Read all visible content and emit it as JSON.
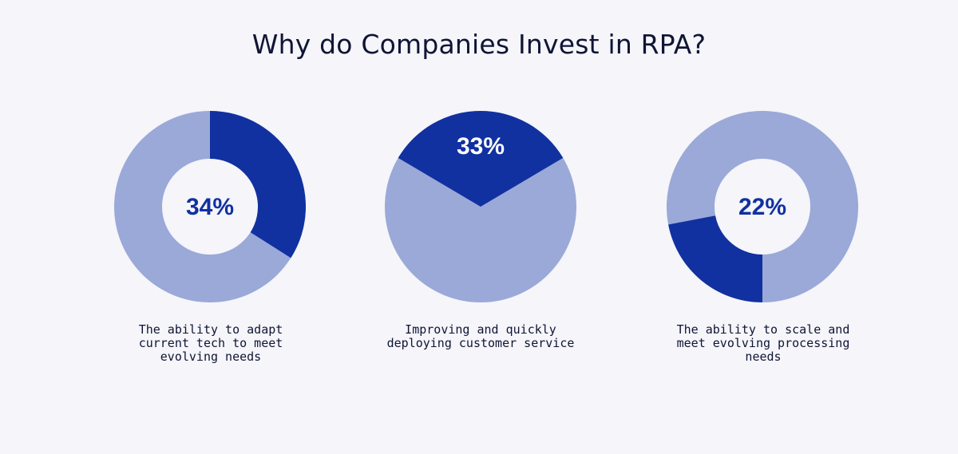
{
  "title": "Why do Companies Invest in RPA?",
  "colors": {
    "primary": "#1131a0",
    "secondary": "#9ba9d8",
    "hole": "#f5f5fa",
    "background": "#f5f5fa"
  },
  "chart_data": [
    {
      "type": "pie",
      "style": "donut",
      "value": 34,
      "label": "34%",
      "caption": "The ability to adapt current tech to meet evolving needs",
      "start": "top",
      "direction": "clockwise"
    },
    {
      "type": "pie",
      "style": "full",
      "value": 33,
      "label": "33%",
      "caption": "Improving and quickly deploying customer service",
      "start": "centered-top",
      "direction": "symmetric"
    },
    {
      "type": "pie",
      "style": "donut",
      "value": 22,
      "label": "22%",
      "caption": "The ability to scale and meet evolving processing needs",
      "start": "bottom",
      "direction": "clockwise"
    }
  ]
}
